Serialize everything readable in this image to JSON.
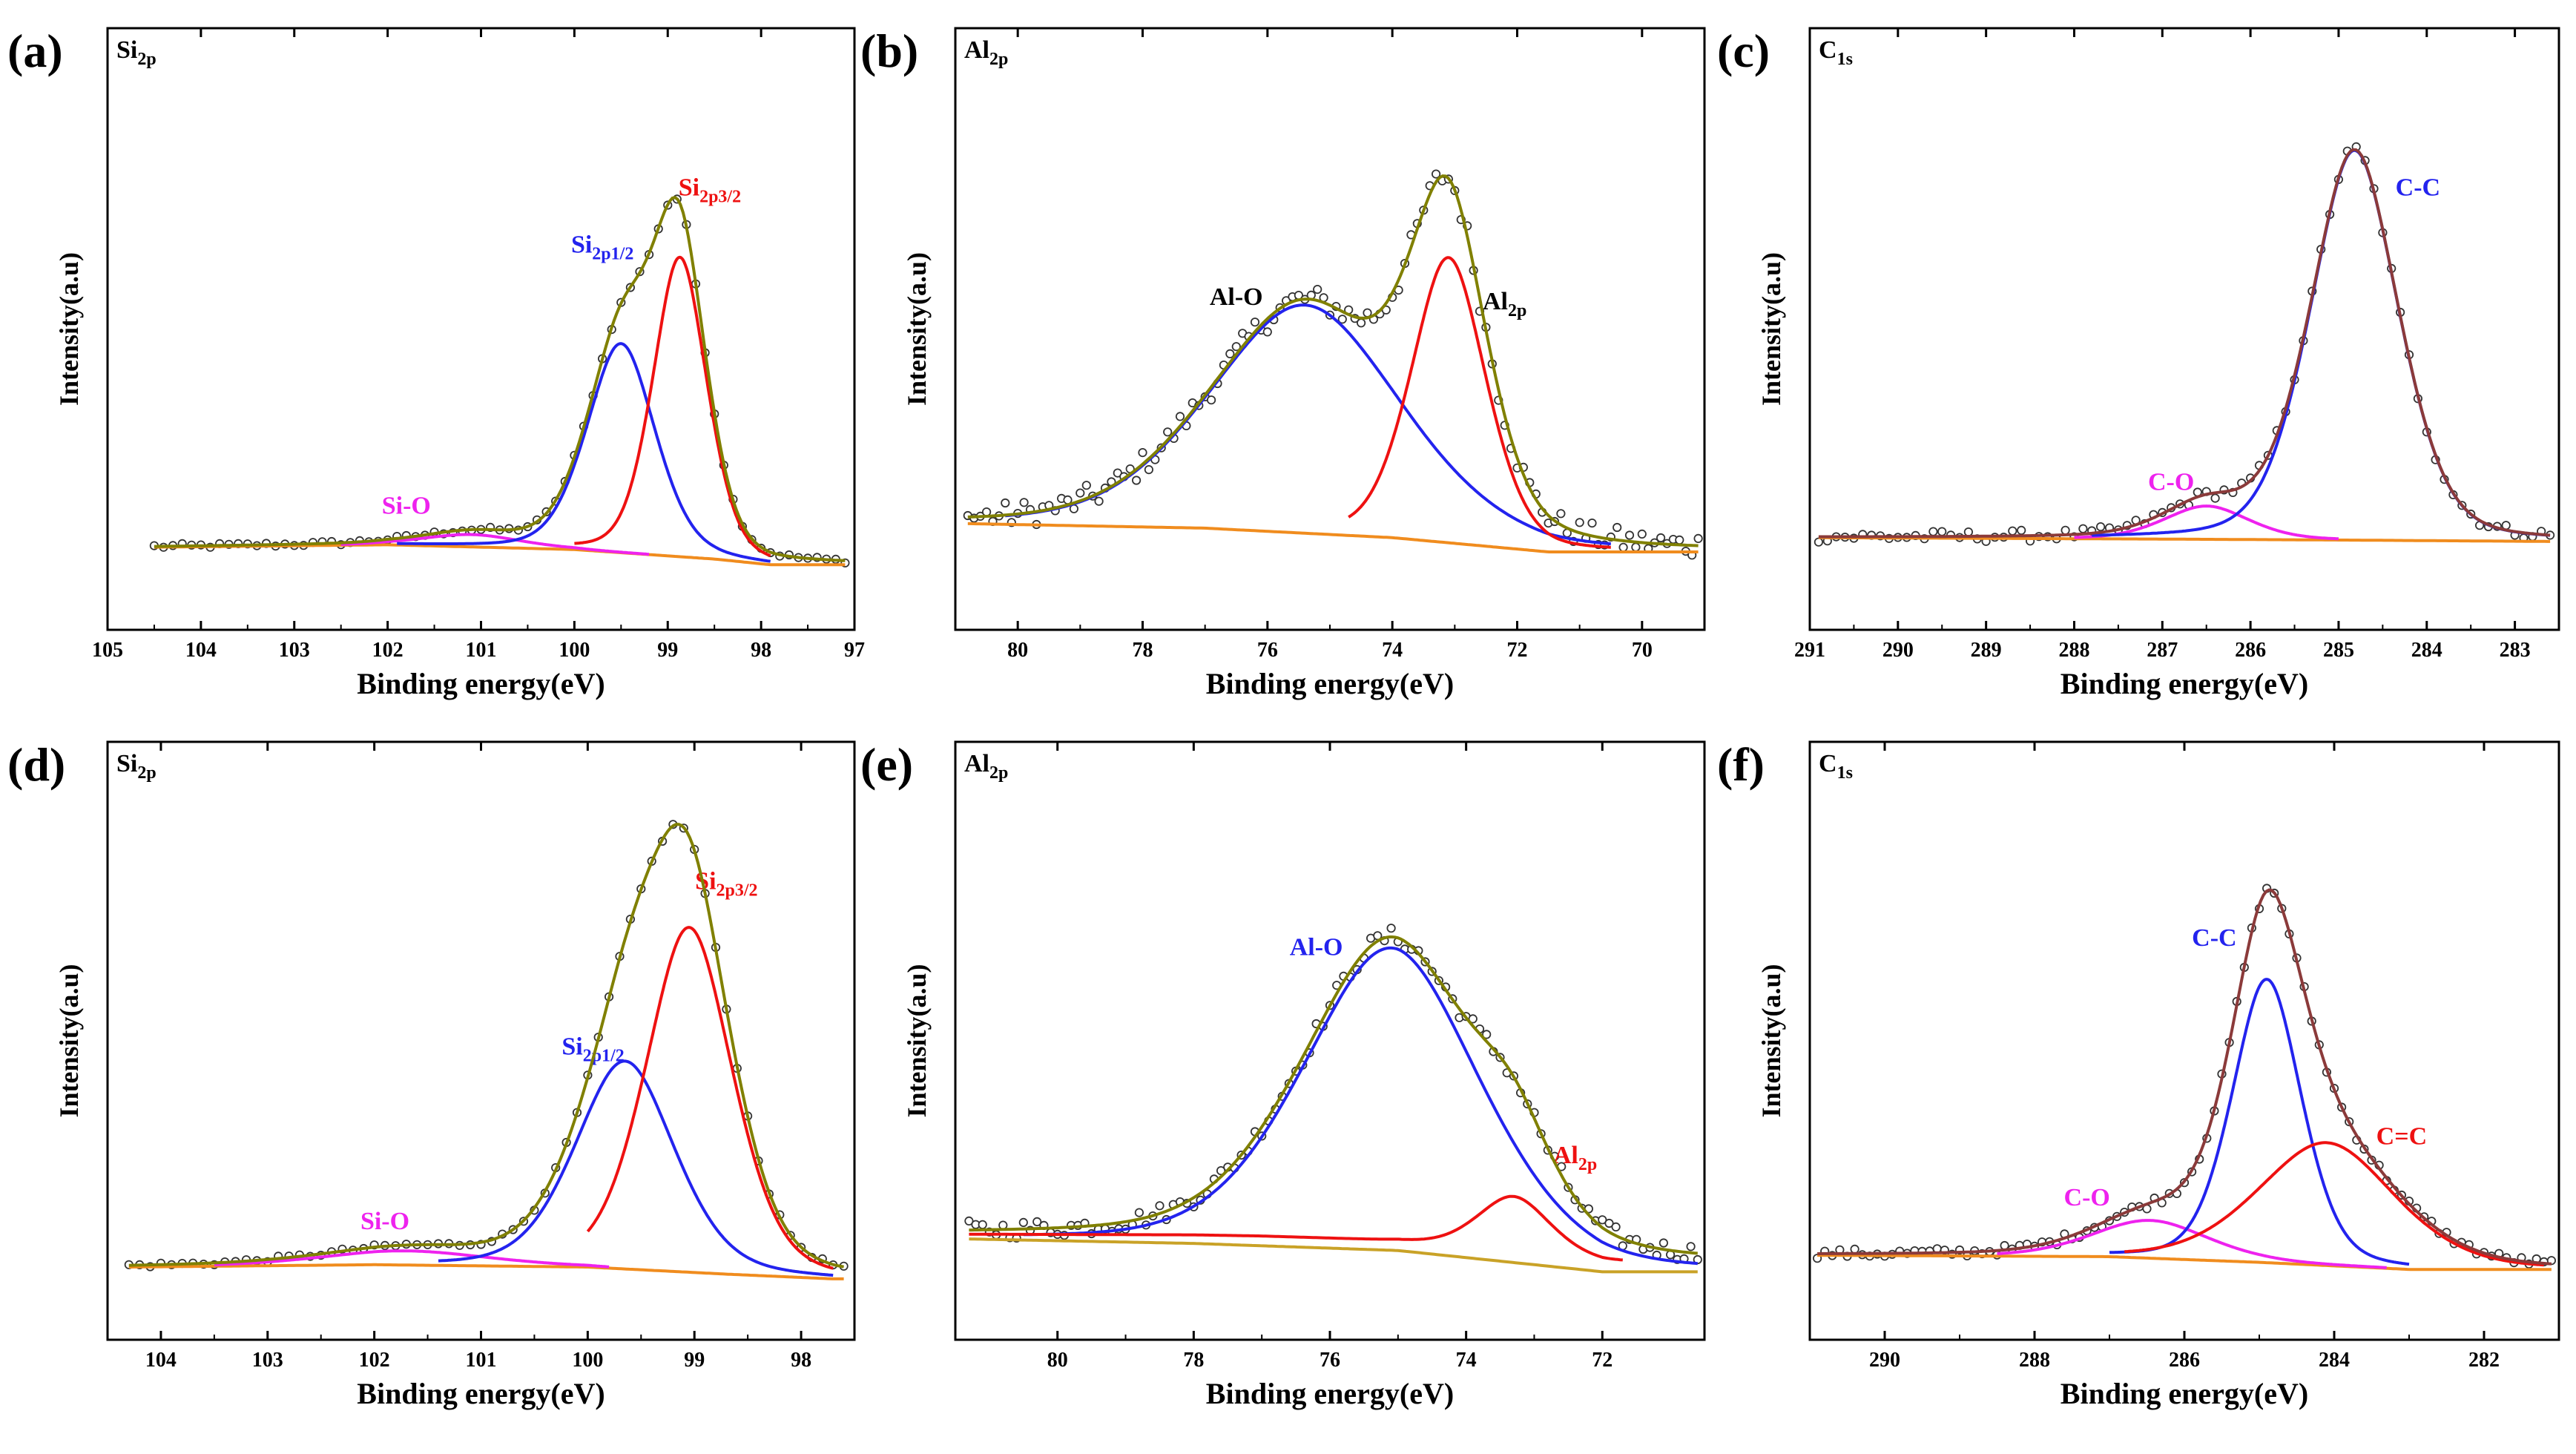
{
  "colors": {
    "envelope": "#808000",
    "envelope_alt": "#8b3a3a",
    "blue": "#2323ee",
    "red": "#ee1111",
    "magenta": "#ee22ee",
    "baseline": "#f08c1e",
    "baseline_alt": "#c9a227",
    "marker_edge": "#333333"
  },
  "chart_data": [
    {
      "panel": "(a)",
      "type": "line",
      "subtitle": "Si",
      "subtitle_sub": "2p",
      "xlabel": "Binding energy(eV)",
      "ylabel": "Intensity(a.u)",
      "xlim": [
        105,
        97
      ],
      "xticks": [
        105,
        104,
        103,
        102,
        101,
        100,
        99,
        98,
        97
      ],
      "xticklabels": [
        "105",
        "104",
        "103",
        "102",
        "101",
        "100",
        "99",
        "98",
        "97"
      ],
      "ylim": [
        0,
        100
      ],
      "baseline": {
        "x": [
          104.5,
          102,
          100,
          98.5,
          97.9
        ],
        "y": [
          6,
          6.5,
          5.5,
          3.5,
          2.3
        ]
      },
      "peaks": [
        {
          "name": "Si-O",
          "color": "magenta",
          "center": 101.1,
          "height": 2.6,
          "width": 0.55,
          "xrange": [
            102.5,
            99.2
          ],
          "label": "Si-O",
          "label_pos": [
            101.8,
            13
          ]
        },
        {
          "name": "Si2p1/2",
          "color": "blue",
          "center": 99.5,
          "height": 44,
          "width": 0.38,
          "xrange": [
            101.9,
            97.9
          ],
          "label": "Si",
          "label_sub": "2p1/2",
          "label_pos": [
            99.7,
            68
          ]
        },
        {
          "name": "Si2p3/2",
          "color": "red",
          "center": 98.87,
          "height": 63,
          "width": 0.3,
          "xrange": [
            100,
            97.9
          ],
          "label": "Si",
          "label_sub": "2p3/2",
          "label_pos": [
            98.55,
            80
          ]
        }
      ],
      "data": {
        "x_start": 104.5,
        "x_end": 97.1,
        "step": 0.1,
        "noise": 0.5,
        "tail": "flat",
        "tail_level": 3.6
      }
    },
    {
      "panel": "(b)",
      "type": "line",
      "subtitle": "Al",
      "subtitle_sub": "2p",
      "xlabel": "Binding energy(eV)",
      "ylabel": "Intensity(a.u)",
      "xlim": [
        81,
        69
      ],
      "xticks": [
        80,
        78,
        76,
        74,
        72,
        70
      ],
      "xticklabels": [
        "80",
        "78",
        "76",
        "74",
        "72",
        "70"
      ],
      "ylim": [
        0,
        100
      ],
      "baseline": {
        "x": [
          81,
          77,
          74,
          71.5,
          70.5
        ],
        "y": [
          11,
          10,
          8,
          5,
          5
        ]
      },
      "peaks": [
        {
          "name": "Al-O",
          "color": "blue",
          "center": 75.4,
          "height": 48,
          "width": 1.6,
          "xrange": [
            80.2,
            70.5
          ],
          "label": "Al-O",
          "label_pos": [
            76.5,
            57
          ]
        },
        {
          "name": "Al2p",
          "color": "red",
          "center": 73.1,
          "height": 60,
          "width": 0.62,
          "xrange": [
            74.7,
            70.5
          ],
          "label": "Al",
          "label_sub": "2p",
          "label_pos": [
            72.2,
            56
          ]
        }
      ],
      "data": {
        "x_start": 80.8,
        "x_end": 69.1,
        "step": 0.1,
        "noise": 2.8,
        "tail": "flat",
        "tail_level": 5
      }
    },
    {
      "panel": "(c)",
      "type": "line",
      "subtitle": "C",
      "subtitle_sub": "1s",
      "xlabel": "Binding energy(eV)",
      "ylabel": "Intensity(a.u)",
      "xlim": [
        291,
        282.5
      ],
      "xticks": [
        291,
        290,
        289,
        288,
        287,
        286,
        285,
        284,
        283
      ],
      "xticklabels": [
        "291",
        "290",
        "289",
        "288",
        "287",
        "286",
        "285",
        "284",
        "283"
      ],
      "ylim": [
        0,
        100
      ],
      "baseline": {
        "x": [
          291,
          287,
          285,
          282.6
        ],
        "y": [
          8,
          7.7,
          7.5,
          7.2
        ]
      },
      "peaks": [
        {
          "name": "C-O",
          "color": "magenta",
          "center": 286.5,
          "height": 7,
          "width": 0.5,
          "xrange": [
            288,
            285
          ],
          "label": "C-O",
          "label_pos": [
            286.9,
            18
          ]
        },
        {
          "name": "C-C",
          "color": "blue",
          "center": 284.82,
          "height": 82,
          "width": 0.52,
          "xrange": [
            287.8,
            282.6
          ],
          "label": "C-C",
          "label_pos": [
            284.1,
            80
          ]
        }
      ],
      "data": {
        "x_start": 290.9,
        "x_end": 282.6,
        "step": 0.1,
        "noise": 1.2,
        "tail": "flat",
        "tail_level": 7.2
      }
    },
    {
      "panel": "(d)",
      "type": "line",
      "subtitle": "Si",
      "subtitle_sub": "2p",
      "xlabel": "Binding energy(eV)",
      "ylabel": "Intensity(a.u)",
      "xlim": [
        104.5,
        97.5
      ],
      "xticks": [
        104,
        103,
        102,
        101,
        100,
        99,
        98
      ],
      "xticklabels": [
        "104",
        "103",
        "102",
        "101",
        "100",
        "99",
        "98"
      ],
      "ylim": [
        0,
        100
      ],
      "baseline": {
        "x": [
          104.3,
          102,
          100,
          98.7,
          97.7
        ],
        "y": [
          4,
          4.5,
          4,
          2.5,
          1.5
        ]
      },
      "peaks": [
        {
          "name": "Si-O",
          "color": "magenta",
          "center": 101.7,
          "height": 3,
          "width": 0.8,
          "xrange": [
            103.5,
            99.8
          ],
          "label": "Si-O",
          "label_pos": [
            101.9,
            12
          ]
        },
        {
          "name": "Si2p1/2",
          "color": "blue",
          "center": 99.65,
          "height": 44,
          "width": 0.48,
          "xrange": [
            101.4,
            97.7
          ],
          "label": "Si",
          "label_sub": "2p1/2",
          "label_pos": [
            99.95,
            49
          ]
        },
        {
          "name": "Si2p3/2",
          "color": "red",
          "center": 99.05,
          "height": 73,
          "width": 0.42,
          "xrange": [
            100.0,
            97.7
          ],
          "label": "Si",
          "label_sub": "2p3/2",
          "label_pos": [
            98.7,
            84
          ]
        }
      ],
      "data": {
        "x_start": 104.3,
        "x_end": 97.6,
        "step": 0.1,
        "noise": 0.5,
        "tail": "flat",
        "tail_level": 1.5
      }
    },
    {
      "panel": "(e)",
      "type": "line",
      "subtitle": "Al",
      "subtitle_sub": "2p",
      "xlabel": "Binding energy(eV)",
      "ylabel": "Intensity(a.u)",
      "xlim": [
        81.5,
        70.5
      ],
      "xticks": [
        80,
        78,
        76,
        74,
        72
      ],
      "xticklabels": [
        "80",
        "78",
        "76",
        "74",
        "72"
      ],
      "ylim": [
        0,
        100
      ],
      "baseline": {
        "x": [
          81.5,
          78,
          75,
          72,
          70.6
        ],
        "y": [
          10,
          9,
          7.5,
          3,
          3
        ]
      },
      "peaks": [
        {
          "name": "Al-O",
          "color": "blue",
          "center": 75.1,
          "height": 64,
          "width": 1.35,
          "xrange": [
            80.5,
            70.6
          ],
          "label": "Al-O",
          "label_pos": [
            76.2,
            70
          ]
        },
        {
          "name": "Al2p",
          "color": "red",
          "center": 73.3,
          "height": 12,
          "width": 0.55,
          "xrange": [
            81.3,
            71.7
          ],
          "label": "Al",
          "label_sub": "2p",
          "label_pos": [
            72.4,
            26
          ],
          "baseline_offset": [
            [
              81.3,
              1
            ],
            [
              77,
              2
            ],
            [
              74.5,
              2
            ]
          ]
        }
      ],
      "data": {
        "x_start": 81.3,
        "x_end": 70.6,
        "step": 0.1,
        "noise": 2.0,
        "tail": "flat",
        "tail_level": 3
      }
    },
    {
      "panel": "(f)",
      "type": "line",
      "subtitle": "C",
      "subtitle_sub": "1s",
      "xlabel": "Binding energy(eV)",
      "ylabel": "Intensity(a.u)",
      "xlim": [
        291,
        281
      ],
      "xticks": [
        290,
        288,
        286,
        284,
        282
      ],
      "xticklabels": [
        "290",
        "288",
        "286",
        "284",
        "282"
      ],
      "ylim": [
        0,
        100
      ],
      "baseline": {
        "x": [
          291,
          287,
          285,
          283,
          281.1
        ],
        "y": [
          6.5,
          6.2,
          5,
          3.5,
          3.5
        ]
      },
      "peaks": [
        {
          "name": "C-O",
          "color": "magenta",
          "center": 286.45,
          "height": 8,
          "width": 0.8,
          "xrange": [
            288.5,
            283.3
          ],
          "label": "C-O",
          "label_pos": [
            287.3,
            17
          ]
        },
        {
          "name": "C-C",
          "color": "blue",
          "center": 284.9,
          "height": 60,
          "width": 0.48,
          "xrange": [
            287,
            283
          ],
          "label": "C-C",
          "label_pos": [
            285.6,
            72
          ]
        },
        {
          "name": "C=C",
          "color": "red",
          "center": 284.1,
          "height": 26,
          "width": 0.95,
          "xrange": [
            286.8,
            281.2
          ],
          "label": "C=C",
          "label_pos": [
            283.1,
            30
          ]
        }
      ],
      "data": {
        "x_start": 290.9,
        "x_end": 281.1,
        "step": 0.1,
        "noise": 1.0,
        "tail": "flat",
        "tail_level": 3.5
      }
    }
  ]
}
